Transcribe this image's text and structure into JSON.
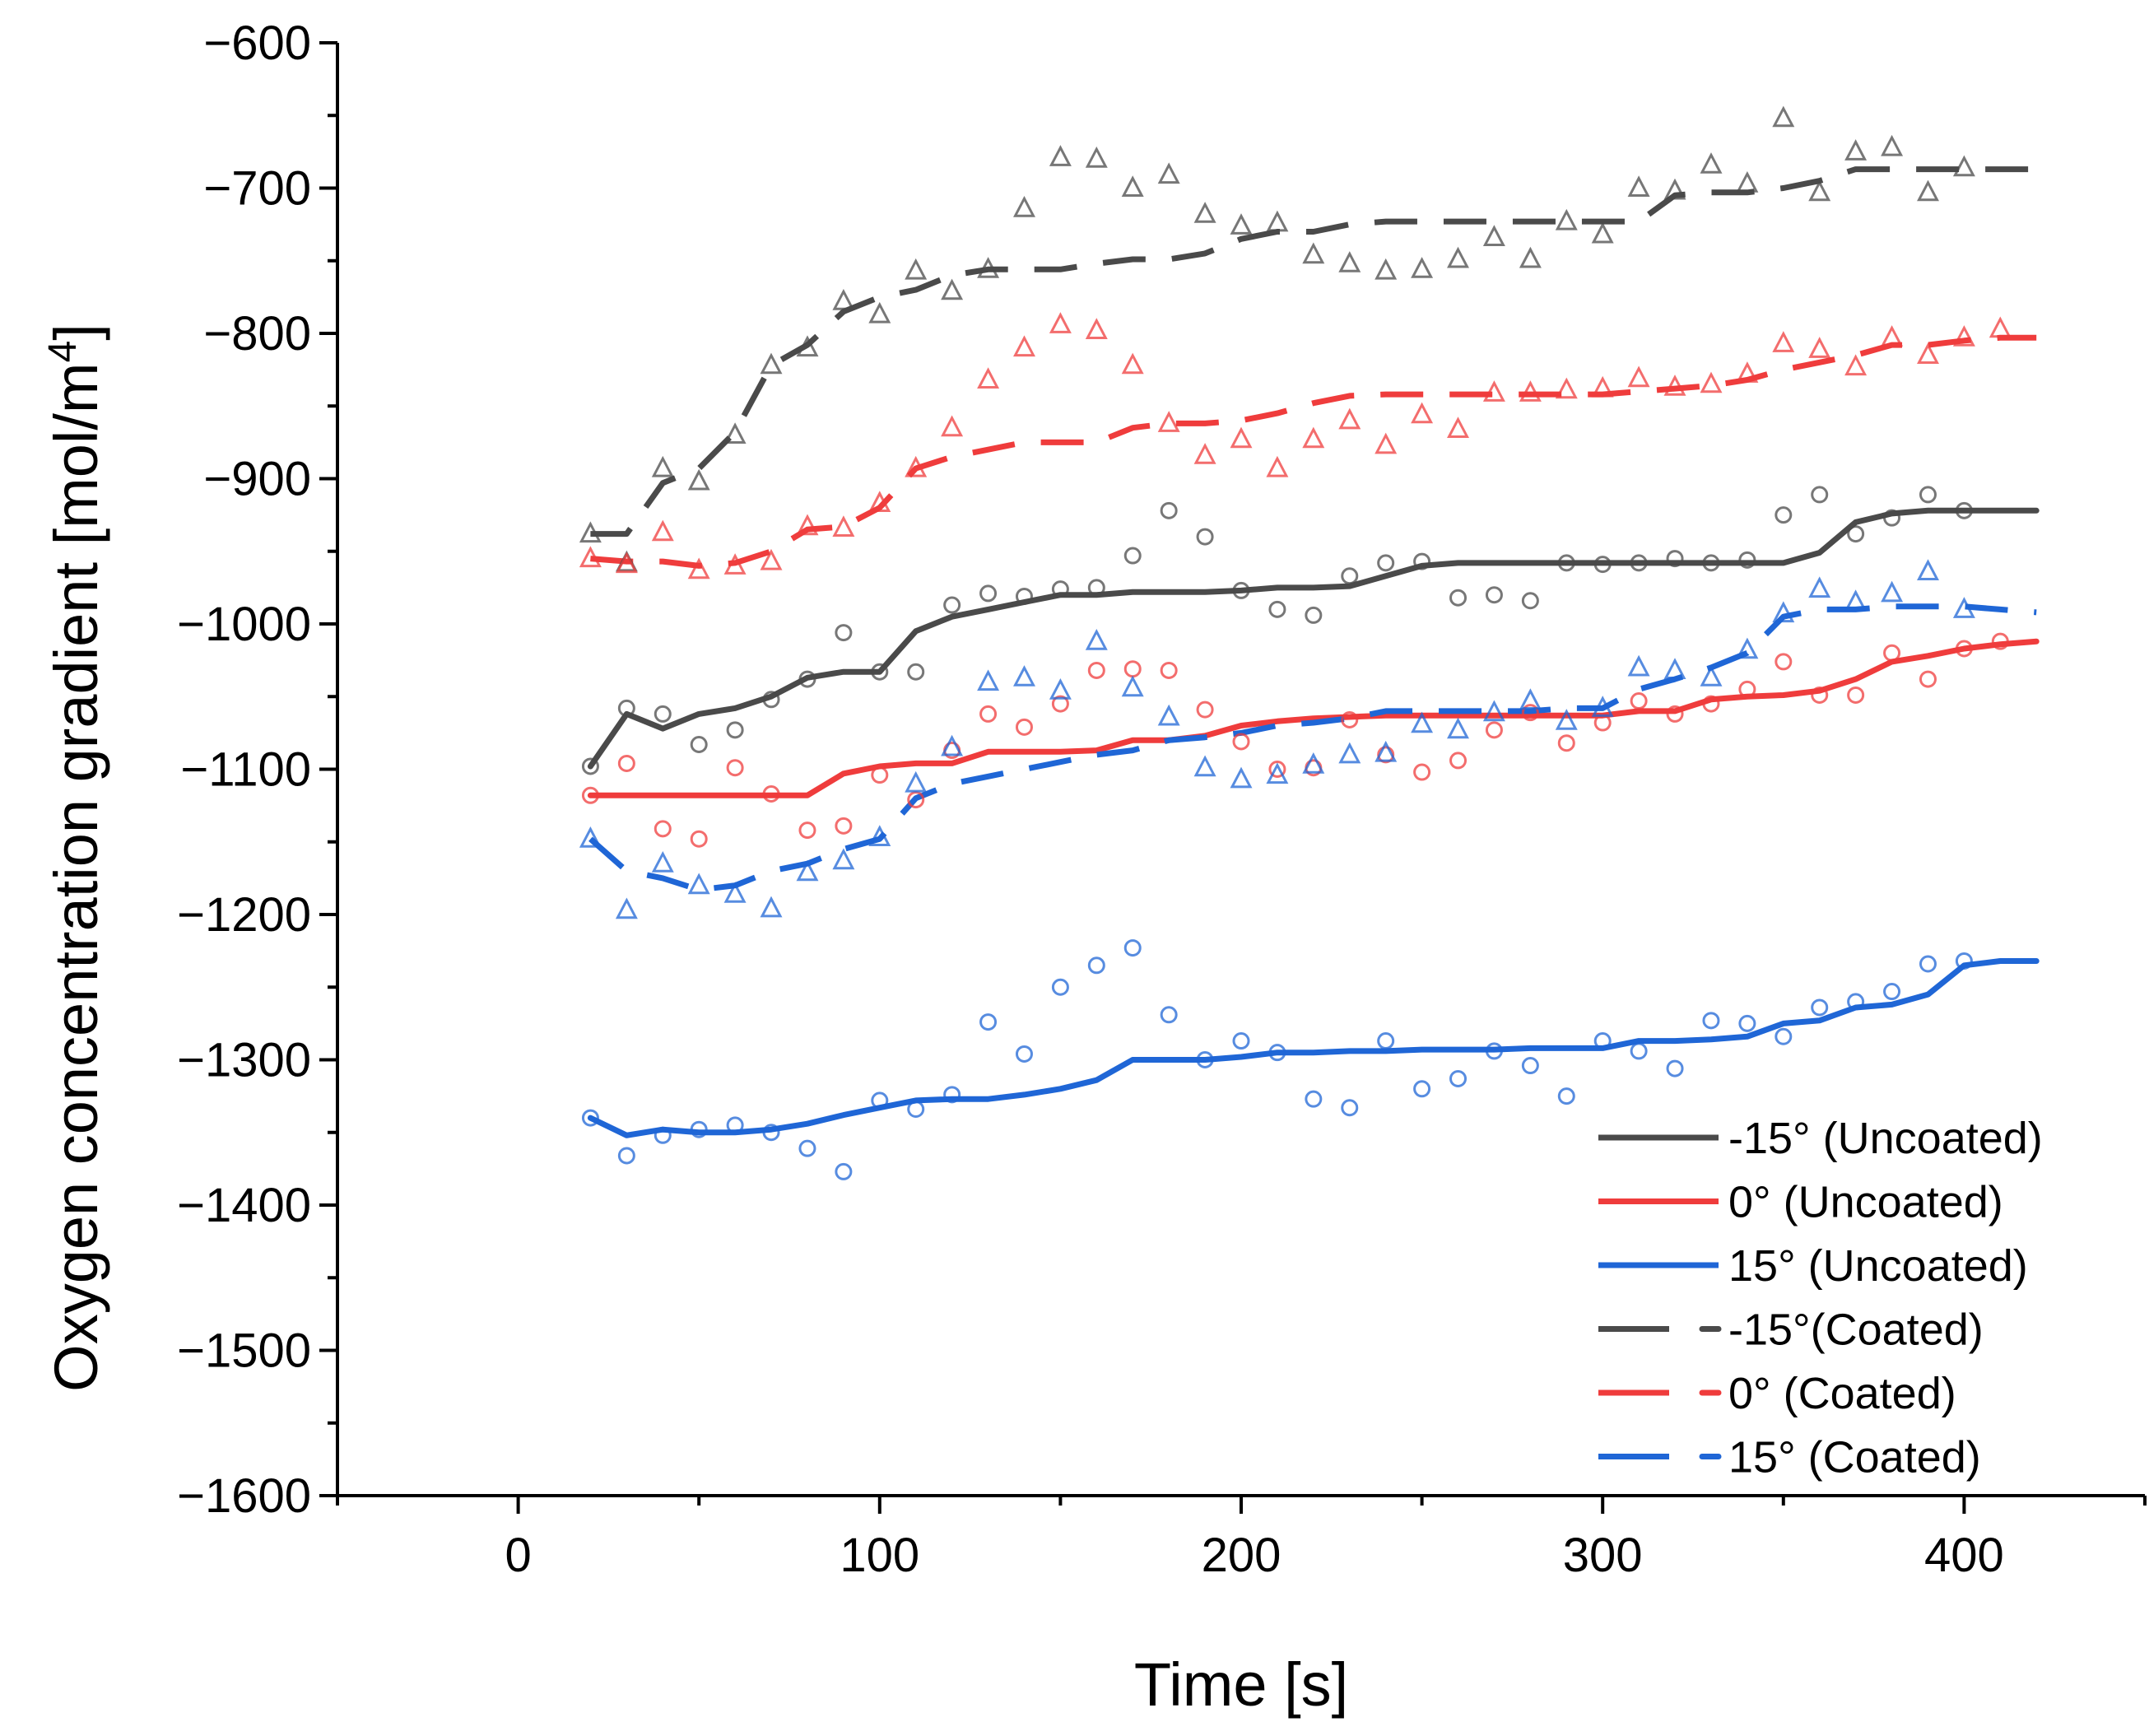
{
  "chart_data": {
    "type": "line",
    "title": "",
    "xlabel": "Time [s]",
    "ylabel_main": "Oxygen concentration gradient [mol/m",
    "ylabel_sup": "4",
    "ylabel_close": "]",
    "xlim": [
      -50,
      450
    ],
    "ylim": [
      -1600,
      -600
    ],
    "xticks": [
      0,
      100,
      200,
      300,
      400
    ],
    "xtick_labels": [
      "0",
      "100",
      "200",
      "300",
      "400"
    ],
    "yticks": [
      -600,
      -700,
      -800,
      -900,
      -1000,
      -1100,
      -1200,
      -1300,
      -1400,
      -1500,
      -1600
    ],
    "ytick_labels": [
      "−600",
      "−700",
      "−800",
      "−900",
      "−1000",
      "−1100",
      "−1200",
      "−1300",
      "−1400",
      "−1500",
      "−1600"
    ],
    "colors": {
      "black": "#4a4a4a",
      "red": "#ef3c3c",
      "blue": "#1f66d6"
    },
    "legend_position": "bottom-right",
    "series": [
      {
        "name": "-15° (Uncoated)",
        "color": "#4a4a4a",
        "style": "solid",
        "marker": "circle",
        "x": [
          20,
          30,
          40,
          50,
          60,
          70,
          80,
          90,
          100,
          110,
          120,
          130,
          140,
          150,
          160,
          170,
          180,
          190,
          200,
          210,
          220,
          230,
          240,
          250,
          260,
          270,
          280,
          290,
          300,
          310,
          320,
          330,
          340,
          350,
          360,
          370,
          380,
          390,
          400,
          410,
          420
        ],
        "line": [
          -1098,
          -1062,
          -1072,
          -1062,
          -1058,
          -1050,
          -1037,
          -1033,
          -1033,
          -1005,
          -995,
          -990,
          -985,
          -980,
          -980,
          -978,
          -978,
          -978,
          -977,
          -975,
          -975,
          -974,
          -967,
          -960,
          -958,
          -958,
          -958,
          -958,
          -958,
          -958,
          -958,
          -958,
          -958,
          -958,
          -951,
          -930,
          -924,
          -922,
          -922,
          -922,
          -922
        ],
        "markers": [
          -1098,
          -1058,
          -1062,
          -1083,
          -1073,
          -1052,
          -1038,
          -1006,
          -1033,
          -1033,
          -987,
          -979,
          -981,
          -976,
          -975,
          -953,
          -922,
          -940,
          -977,
          -990,
          -994,
          -967,
          -958,
          -957,
          -982,
          -980,
          -984,
          -958,
          -959,
          -958,
          -955,
          -958,
          -956,
          -925,
          -911,
          -938,
          -927,
          -911,
          -922
        ]
      },
      {
        "name": "0° (Uncoated)",
        "color": "#ef3c3c",
        "style": "solid",
        "marker": "circle",
        "x": [
          20,
          30,
          40,
          50,
          60,
          70,
          80,
          90,
          100,
          110,
          120,
          130,
          140,
          150,
          160,
          170,
          180,
          190,
          200,
          210,
          220,
          230,
          240,
          250,
          260,
          270,
          280,
          290,
          300,
          310,
          320,
          330,
          340,
          350,
          360,
          370,
          380,
          390,
          400,
          410,
          420
        ],
        "line": [
          -1118,
          -1118,
          -1118,
          -1118,
          -1118,
          -1118,
          -1118,
          -1103,
          -1098,
          -1096,
          -1096,
          -1088,
          -1088,
          -1088,
          -1087,
          -1080,
          -1080,
          -1077,
          -1070,
          -1067,
          -1065,
          -1064,
          -1063,
          -1063,
          -1063,
          -1063,
          -1063,
          -1063,
          -1063,
          -1060,
          -1060,
          -1052,
          -1050,
          -1049,
          -1046,
          -1038,
          -1026,
          -1022,
          -1017,
          -1014,
          -1012
        ],
        "markers": [
          -1118,
          -1096,
          -1141,
          -1148,
          -1099,
          -1117,
          -1142,
          -1139,
          -1104,
          -1121,
          -1087,
          -1062,
          -1071,
          -1055,
          -1032,
          -1031,
          -1032,
          -1059,
          -1081,
          -1100,
          -1099,
          -1066,
          -1090,
          -1102,
          -1094,
          -1073,
          -1061,
          -1082,
          -1068,
          -1053,
          -1062,
          -1055,
          -1045,
          -1026,
          -1049,
          -1049,
          -1020,
          -1038,
          -1017,
          -1012
        ]
      },
      {
        "name": "15° (Uncoated)",
        "color": "#1f66d6",
        "style": "solid",
        "marker": "circle",
        "x": [
          20,
          30,
          40,
          50,
          60,
          70,
          80,
          90,
          100,
          110,
          120,
          130,
          140,
          150,
          160,
          170,
          180,
          190,
          200,
          210,
          220,
          230,
          240,
          250,
          260,
          270,
          280,
          290,
          300,
          310,
          320,
          330,
          340,
          350,
          360,
          370,
          380,
          390,
          400,
          410,
          420
        ],
        "line": [
          -1340,
          -1352,
          -1348,
          -1350,
          -1350,
          -1348,
          -1344,
          -1338,
          -1333,
          -1328,
          -1327,
          -1327,
          -1324,
          -1320,
          -1314,
          -1300,
          -1300,
          -1300,
          -1298,
          -1295,
          -1295,
          -1294,
          -1294,
          -1293,
          -1293,
          -1293,
          -1292,
          -1292,
          -1292,
          -1287,
          -1287,
          -1286,
          -1284,
          -1275,
          -1273,
          -1264,
          -1262,
          -1255,
          -1235,
          -1232,
          -1232
        ],
        "markers": [
          -1340,
          -1366,
          -1352,
          -1348,
          -1345,
          -1350,
          -1361,
          -1377,
          -1328,
          -1334,
          -1324,
          -1274,
          -1296,
          -1250,
          -1235,
          -1223,
          -1269,
          -1300,
          -1287,
          -1295,
          -1327,
          -1333,
          -1287,
          -1320,
          -1313,
          -1294,
          -1304,
          -1325,
          -1287,
          -1294,
          -1306,
          -1273,
          -1275,
          -1284,
          -1264,
          -1260,
          -1253,
          -1234,
          -1232
        ]
      },
      {
        "name": "-15°(Coated)",
        "color": "#4a4a4a",
        "style": "dashed",
        "marker": "triangle",
        "x": [
          20,
          30,
          40,
          50,
          60,
          70,
          80,
          90,
          100,
          110,
          120,
          130,
          140,
          150,
          160,
          170,
          180,
          190,
          200,
          210,
          220,
          230,
          240,
          250,
          260,
          270,
          280,
          290,
          300,
          310,
          320,
          330,
          340,
          350,
          360,
          370,
          380,
          390,
          400,
          410,
          420
        ],
        "line": [
          -938,
          -938,
          -903,
          -893,
          -868,
          -822,
          -808,
          -785,
          -775,
          -770,
          -760,
          -756,
          -756,
          -756,
          -752,
          -749,
          -749,
          -745,
          -735,
          -730,
          -730,
          -725,
          -723,
          -723,
          -723,
          -723,
          -723,
          -723,
          -723,
          -723,
          -705,
          -703,
          -703,
          -700,
          -695,
          -687,
          -687,
          -687,
          -687,
          -687,
          -687
        ],
        "markers": [
          -938,
          -958,
          -893,
          -902,
          -870,
          -822,
          -810,
          -778,
          -787,
          -757,
          -771,
          -756,
          -714,
          -679,
          -680,
          -700,
          -691,
          -718,
          -726,
          -724,
          -746,
          -752,
          -757,
          -756,
          -749,
          -734,
          -749,
          -723,
          -732,
          -700,
          -702,
          -684,
          -697,
          -652,
          -703,
          -675,
          -672,
          -703,
          -686
        ]
      },
      {
        "name": "0° (Coated)",
        "color": "#ef3c3c",
        "style": "dashed",
        "marker": "triangle",
        "x": [
          20,
          30,
          40,
          50,
          60,
          70,
          80,
          90,
          100,
          110,
          120,
          130,
          140,
          150,
          160,
          170,
          180,
          190,
          200,
          210,
          220,
          230,
          240,
          250,
          260,
          270,
          280,
          290,
          300,
          310,
          320,
          330,
          340,
          350,
          360,
          370,
          380,
          390,
          400,
          410,
          420
        ],
        "line": [
          -955,
          -957,
          -957,
          -960,
          -958,
          -950,
          -935,
          -933,
          -920,
          -893,
          -885,
          -880,
          -875,
          -875,
          -875,
          -865,
          -862,
          -862,
          -860,
          -855,
          -848,
          -843,
          -842,
          -842,
          -842,
          -842,
          -842,
          -842,
          -842,
          -840,
          -838,
          -836,
          -832,
          -825,
          -820,
          -815,
          -808,
          -808,
          -805,
          -803,
          -803
        ],
        "markers": [
          -955,
          -959,
          -937,
          -963,
          -960,
          -957,
          -933,
          -934,
          -917,
          -893,
          -865,
          -832,
          -810,
          -794,
          -798,
          -822,
          -862,
          -884,
          -873,
          -893,
          -873,
          -860,
          -877,
          -856,
          -866,
          -841,
          -841,
          -839,
          -838,
          -831,
          -837,
          -835,
          -828,
          -807,
          -811,
          -823,
          -803,
          -815,
          -803,
          -797
        ]
      },
      {
        "name": "15° (Coated)",
        "color": "#1f66d6",
        "style": "dashed",
        "marker": "triangle",
        "x": [
          20,
          30,
          40,
          50,
          60,
          70,
          80,
          90,
          100,
          110,
          120,
          130,
          140,
          150,
          160,
          170,
          180,
          190,
          200,
          210,
          220,
          230,
          240,
          250,
          260,
          270,
          280,
          290,
          300,
          310,
          320,
          330,
          340,
          350,
          360,
          370,
          380,
          390,
          400,
          410,
          420
        ],
        "line": [
          -1148,
          -1170,
          -1175,
          -1183,
          -1180,
          -1170,
          -1165,
          -1155,
          -1148,
          -1120,
          -1110,
          -1105,
          -1100,
          -1095,
          -1090,
          -1087,
          -1080,
          -1078,
          -1075,
          -1070,
          -1068,
          -1065,
          -1060,
          -1060,
          -1060,
          -1060,
          -1060,
          -1058,
          -1058,
          -1045,
          -1038,
          -1030,
          -1020,
          -995,
          -990,
          -990,
          -988,
          -988,
          -988,
          -990,
          -992
        ],
        "markers": [
          -1148,
          -1197,
          -1165,
          -1180,
          -1186,
          -1196,
          -1171,
          -1163,
          -1147,
          -1110,
          -1085,
          -1040,
          -1037,
          -1046,
          -1012,
          -1044,
          -1064,
          -1099,
          -1107,
          -1104,
          -1097,
          -1090,
          -1089,
          -1069,
          -1073,
          -1061,
          -1053,
          -1067,
          -1058,
          -1030,
          -1032,
          -1037,
          -1018,
          -993,
          -976,
          -985,
          -979,
          -964,
          -990
        ]
      }
    ]
  }
}
